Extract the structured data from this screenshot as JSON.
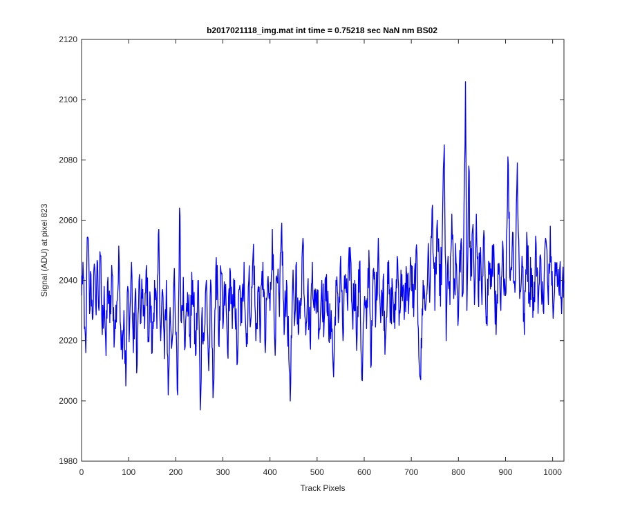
{
  "chart_data": {
    "type": "line",
    "title": "b2017021118_img.mat int time = 0.75218 sec  NaN nm BS02",
    "xlabel": "Track Pixels",
    "ylabel": "Signal (ADU) at pixel 823",
    "xlim": [
      0,
      1024
    ],
    "ylim": [
      1980,
      2120
    ],
    "xticks": [
      0,
      100,
      200,
      300,
      400,
      500,
      600,
      700,
      800,
      900,
      1000
    ],
    "yticks": [
      1980,
      2000,
      2020,
      2040,
      2060,
      2080,
      2100,
      2120
    ],
    "grid": false,
    "legend": "none",
    "series": [
      {
        "color": "#0000ff",
        "anchors": [
          [
            0,
            2035
          ],
          [
            3,
            2046
          ],
          [
            6,
            2024
          ],
          [
            9,
            2016
          ],
          [
            11,
            2044
          ],
          [
            14,
            2054
          ],
          [
            17,
            2029
          ],
          [
            20,
            2042
          ],
          [
            23,
            2027
          ],
          [
            26,
            2043
          ],
          [
            30,
            2032
          ],
          [
            34,
            2046
          ],
          [
            37,
            2030
          ],
          [
            40,
            2048
          ],
          [
            44,
            2022
          ],
          [
            48,
            2038
          ],
          [
            52,
            2015
          ],
          [
            56,
            2041
          ],
          [
            60,
            2026
          ],
          [
            65,
            2042
          ],
          [
            70,
            2021
          ],
          [
            75,
            2033
          ],
          [
            80,
            2046
          ],
          [
            85,
            2018
          ],
          [
            90,
            2030
          ],
          [
            94,
            2005
          ],
          [
            98,
            2038
          ],
          [
            102,
            2025
          ],
          [
            106,
            2046
          ],
          [
            110,
            2016
          ],
          [
            114,
            2036
          ],
          [
            118,
            2012
          ],
          [
            122,
            2040
          ],
          [
            126,
            2026
          ],
          [
            130,
            2037
          ],
          [
            134,
            2024
          ],
          [
            138,
            2045
          ],
          [
            142,
            2021
          ],
          [
            146,
            2034
          ],
          [
            150,
            2016
          ],
          [
            155,
            2040
          ],
          [
            160,
            2024
          ],
          [
            164,
            2057
          ],
          [
            168,
            2020
          ],
          [
            172,
            2037
          ],
          [
            176,
            2014
          ],
          [
            180,
            2040
          ],
          [
            184,
            2002
          ],
          [
            188,
            2031
          ],
          [
            192,
            2019
          ],
          [
            196,
            2040
          ],
          [
            200,
            2022
          ],
          [
            204,
            2002
          ],
          [
            208,
            2064
          ],
          [
            212,
            2026
          ],
          [
            216,
            2041
          ],
          [
            220,
            2018
          ],
          [
            225,
            2036
          ],
          [
            230,
            2022
          ],
          [
            236,
            2040
          ],
          [
            242,
            2015
          ],
          [
            248,
            2040
          ],
          [
            252,
            1997
          ],
          [
            256,
            2031
          ],
          [
            260,
            2020
          ],
          [
            265,
            2040
          ],
          [
            270,
            2010
          ],
          [
            275,
            2038
          ],
          [
            279,
            2001
          ],
          [
            283,
            2030
          ],
          [
            288,
            2045
          ],
          [
            292,
            2018
          ],
          [
            296,
            2043
          ],
          [
            300,
            2024
          ],
          [
            305,
            2038
          ],
          [
            310,
            2016
          ],
          [
            315,
            2044
          ],
          [
            320,
            2024
          ],
          [
            325,
            2040
          ],
          [
            330,
            2012
          ],
          [
            335,
            2037
          ],
          [
            340,
            2026
          ],
          [
            345,
            2046
          ],
          [
            350,
            2018
          ],
          [
            355,
            2040
          ],
          [
            360,
            2028
          ],
          [
            365,
            2052
          ],
          [
            370,
            2020
          ],
          [
            375,
            2038
          ],
          [
            380,
            2025
          ],
          [
            385,
            2046
          ],
          [
            390,
            2016
          ],
          [
            395,
            2040
          ],
          [
            400,
            2030
          ],
          [
            405,
            2057
          ],
          [
            410,
            2020
          ],
          [
            415,
            2040
          ],
          [
            420,
            2028
          ],
          [
            425,
            2059
          ],
          [
            430,
            2022
          ],
          [
            435,
            2040
          ],
          [
            440,
            2014
          ],
          [
            444,
            2006
          ],
          [
            448,
            2038
          ],
          [
            452,
            2025
          ],
          [
            456,
            2046
          ],
          [
            460,
            2022
          ],
          [
            465,
            2034
          ],
          [
            470,
            2054
          ],
          [
            475,
            2027
          ],
          [
            480,
            2038
          ],
          [
            485,
            2020
          ],
          [
            490,
            2046
          ],
          [
            495,
            2030
          ],
          [
            500,
            2037
          ],
          [
            505,
            2024
          ],
          [
            510,
            2040
          ],
          [
            515,
            2026
          ],
          [
            520,
            2042
          ],
          [
            525,
            2020
          ],
          [
            530,
            2030
          ],
          [
            535,
            2008
          ],
          [
            540,
            2040
          ],
          [
            545,
            2026
          ],
          [
            550,
            2048
          ],
          [
            555,
            2020
          ],
          [
            560,
            2042
          ],
          [
            565,
            2030
          ],
          [
            570,
            2051
          ],
          [
            575,
            2028
          ],
          [
            580,
            2040
          ],
          [
            585,
            2022
          ],
          [
            590,
            2046
          ],
          [
            595,
            2007
          ],
          [
            600,
            2032
          ],
          [
            605,
            2024
          ],
          [
            610,
            2050
          ],
          [
            615,
            2012
          ],
          [
            620,
            2044
          ],
          [
            625,
            2030
          ],
          [
            630,
            2054
          ],
          [
            635,
            2026
          ],
          [
            640,
            2040
          ],
          [
            645,
            2020
          ],
          [
            650,
            2046
          ],
          [
            655,
            2026
          ],
          [
            660,
            2038
          ],
          [
            665,
            2024
          ],
          [
            670,
            2048
          ],
          [
            675,
            2030
          ],
          [
            680,
            2042
          ],
          [
            685,
            2027
          ],
          [
            690,
            2042
          ],
          [
            695,
            2034
          ],
          [
            700,
            2045
          ],
          [
            705,
            2028
          ],
          [
            710,
            2050
          ],
          [
            715,
            2024
          ],
          [
            720,
            2007
          ],
          [
            725,
            2040
          ],
          [
            730,
            2030
          ],
          [
            735,
            2046
          ],
          [
            740,
            2038
          ],
          [
            745,
            2065
          ],
          [
            750,
            2030
          ],
          [
            755,
            2060
          ],
          [
            760,
            2035
          ],
          [
            765,
            2048
          ],
          [
            770,
            2085
          ],
          [
            774,
            2020
          ],
          [
            778,
            2048
          ],
          [
            782,
            2032
          ],
          [
            786,
            2062
          ],
          [
            790,
            2034
          ],
          [
            795,
            2046
          ],
          [
            800,
            2028
          ],
          [
            805,
            2052
          ],
          [
            810,
            2036
          ],
          [
            815,
            2106
          ],
          [
            818,
            2030
          ],
          [
            822,
            2078
          ],
          [
            826,
            2040
          ],
          [
            830,
            2057
          ],
          [
            834,
            2032
          ],
          [
            838,
            2062
          ],
          [
            842,
            2035
          ],
          [
            846,
            2048
          ],
          [
            850,
            2032
          ],
          [
            855,
            2054
          ],
          [
            860,
            2028
          ],
          [
            865,
            2046
          ],
          [
            870,
            2038
          ],
          [
            875,
            2052
          ],
          [
            880,
            2022
          ],
          [
            885,
            2042
          ],
          [
            890,
            2030
          ],
          [
            895,
            2050
          ],
          [
            900,
            2035
          ],
          [
            905,
            2081
          ],
          [
            910,
            2040
          ],
          [
            915,
            2056
          ],
          [
            920,
            2036
          ],
          [
            925,
            2079
          ],
          [
            930,
            2034
          ],
          [
            935,
            2048
          ],
          [
            940,
            2022
          ],
          [
            945,
            2056
          ],
          [
            950,
            2036
          ],
          [
            955,
            2044
          ],
          [
            960,
            2030
          ],
          [
            965,
            2052
          ],
          [
            970,
            2034
          ],
          [
            975,
            2047
          ],
          [
            980,
            2030
          ],
          [
            985,
            2054
          ],
          [
            990,
            2036
          ],
          [
            995,
            2058
          ],
          [
            1000,
            2034
          ],
          [
            1005,
            2046
          ],
          [
            1010,
            2038
          ],
          [
            1015,
            2044
          ],
          [
            1020,
            2034
          ],
          [
            1024,
            2040
          ]
        ],
        "noise_amplitude": 9
      }
    ]
  }
}
